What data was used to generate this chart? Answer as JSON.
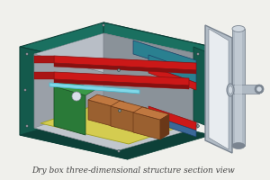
{
  "background_color": "#f0f0ec",
  "caption": "Dry box three-dimensional structure section view",
  "caption_fontsize": 6.5,
  "caption_color": "#444444",
  "fig_width": 3.0,
  "fig_height": 2.0,
  "dpi": 100,
  "colors": {
    "teal_top": "#1a7060",
    "teal_left": "#145a4c",
    "teal_dark": "#0d4038",
    "teal_right_panel": "#1a7060",
    "gray_interior": "#9aa0a8",
    "gray_light": "#b8bec6",
    "gray_dark": "#7a8088",
    "gray_panel_right": "#8a9299",
    "gray_inner_wall": "#a8b0b8",
    "gray_floor_inner": "#c0c6cc",
    "white_bg": "#e8ecf0",
    "red_bright": "#cc1818",
    "red_dark": "#881010",
    "red_medium": "#aa1414",
    "teal_accent": "#2a8090",
    "blue_panel": "#3a6898",
    "blue_dark": "#1a4068",
    "green_panel": "#2a7a38",
    "green_dark": "#1a5025",
    "green_light": "#3a9a48",
    "brown_box": "#9a6030",
    "brown_dark": "#6a3818",
    "brown_light": "#c07840",
    "yellow_floor": "#d4cc50",
    "yellow_dark": "#a0a020",
    "cyan_bar": "#80d8e8",
    "pipe_silver": "#b0bac4",
    "pipe_dark": "#7a8490",
    "pipe_light": "#d0d8e0",
    "screw_gray": "#888890"
  }
}
